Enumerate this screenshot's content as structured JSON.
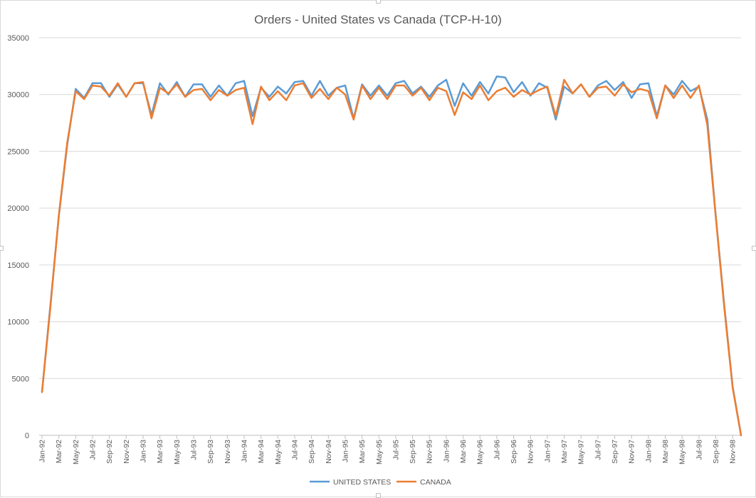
{
  "chart_data": {
    "type": "line",
    "title": "Orders - United States vs Canada (TCP-H-10)",
    "xlabel": "",
    "ylabel": "",
    "ylim": [
      0,
      35000
    ],
    "yticks": [
      0,
      5000,
      10000,
      15000,
      20000,
      25000,
      30000,
      35000
    ],
    "grid": true,
    "legend_position": "bottom",
    "x": [
      "Jan-92",
      "Feb-92",
      "Mar-92",
      "Apr-92",
      "May-92",
      "Jun-92",
      "Jul-92",
      "Aug-92",
      "Sep-92",
      "Oct-92",
      "Nov-92",
      "Dec-92",
      "Jan-93",
      "Feb-93",
      "Mar-93",
      "Apr-93",
      "May-93",
      "Jun-93",
      "Jul-93",
      "Aug-93",
      "Sep-93",
      "Oct-93",
      "Nov-93",
      "Dec-93",
      "Jan-94",
      "Feb-94",
      "Mar-94",
      "Apr-94",
      "May-94",
      "Jun-94",
      "Jul-94",
      "Aug-94",
      "Sep-94",
      "Oct-94",
      "Nov-94",
      "Dec-94",
      "Jan-95",
      "Feb-95",
      "Mar-95",
      "Apr-95",
      "May-95",
      "Jun-95",
      "Jul-95",
      "Aug-95",
      "Sep-95",
      "Oct-95",
      "Nov-95",
      "Dec-95",
      "Jan-96",
      "Feb-96",
      "Mar-96",
      "Apr-96",
      "May-96",
      "Jun-96",
      "Jul-96",
      "Aug-96",
      "Sep-96",
      "Oct-96",
      "Nov-96",
      "Dec-96",
      "Jan-97",
      "Feb-97",
      "Mar-97",
      "Apr-97",
      "May-97",
      "Jun-97",
      "Jul-97",
      "Aug-97",
      "Sep-97",
      "Oct-97",
      "Nov-97",
      "Dec-97",
      "Jan-98",
      "Feb-98",
      "Mar-98",
      "Apr-98",
      "May-98",
      "Jun-98",
      "Jul-98",
      "Aug-98",
      "Sep-98",
      "Oct-98",
      "Nov-98",
      "Dec-98"
    ],
    "x_tick_labels": [
      "Jan-92",
      "Mar-92",
      "May-92",
      "Jul-92",
      "Sep-92",
      "Nov-92",
      "Jan-93",
      "Mar-93",
      "May-93",
      "Jul-93",
      "Sep-93",
      "Nov-93",
      "Jan-94",
      "Mar-94",
      "May-94",
      "Jul-94",
      "Sep-94",
      "Nov-94",
      "Jan-95",
      "Mar-95",
      "May-95",
      "Jul-95",
      "Sep-95",
      "Nov-95",
      "Jan-96",
      "Mar-96",
      "May-96",
      "Jul-96",
      "Sep-96",
      "Nov-96",
      "Jan-97",
      "Mar-97",
      "May-97",
      "Jul-97",
      "Sep-97",
      "Nov-97",
      "Jan-98",
      "Mar-98",
      "May-98",
      "Jul-98",
      "Sep-98",
      "Nov-98"
    ],
    "series": [
      {
        "name": "UNITED STATES",
        "color": "#5b9bd5",
        "values": [
          3800,
          11500,
          19300,
          25600,
          30500,
          29700,
          31000,
          31000,
          29800,
          30900,
          29800,
          31000,
          31000,
          28200,
          31000,
          30000,
          31100,
          29800,
          30900,
          30900,
          29800,
          30800,
          29900,
          31000,
          31200,
          28100,
          30600,
          29800,
          30700,
          30100,
          31100,
          31200,
          29900,
          31200,
          29900,
          30600,
          30800,
          27900,
          30900,
          29900,
          30800,
          29900,
          31000,
          31200,
          30100,
          30700,
          29800,
          30800,
          31300,
          29000,
          31000,
          29900,
          31100,
          30100,
          31600,
          31500,
          30200,
          31100,
          29900,
          31000,
          30600,
          27800,
          30700,
          30100,
          30900,
          29800,
          30800,
          31200,
          30400,
          31100,
          29700,
          30900,
          31000,
          28100,
          30800,
          30000,
          31200,
          30300,
          30700,
          27800,
          19300,
          11500,
          4300,
          0
        ]
      },
      {
        "name": "CANADA",
        "color": "#ed7d31",
        "values": [
          3800,
          11300,
          19400,
          25800,
          30300,
          29600,
          30800,
          30700,
          29900,
          31000,
          29800,
          31000,
          31100,
          27900,
          30600,
          30100,
          30900,
          29800,
          30400,
          30500,
          29500,
          30400,
          29900,
          30400,
          30600,
          27400,
          30700,
          29500,
          30300,
          29500,
          30800,
          31000,
          29700,
          30500,
          29600,
          30600,
          30000,
          27800,
          30800,
          29600,
          30600,
          29600,
          30800,
          30800,
          29900,
          30600,
          29500,
          30600,
          30300,
          28200,
          30200,
          29600,
          30800,
          29500,
          30300,
          30600,
          29800,
          30400,
          30000,
          30400,
          30700,
          28100,
          31300,
          30100,
          30900,
          29800,
          30600,
          30700,
          29900,
          30900,
          30200,
          30500,
          30300,
          27900,
          30800,
          29700,
          30800,
          29700,
          30800,
          27300,
          19200,
          11300,
          4200,
          0
        ]
      }
    ]
  }
}
